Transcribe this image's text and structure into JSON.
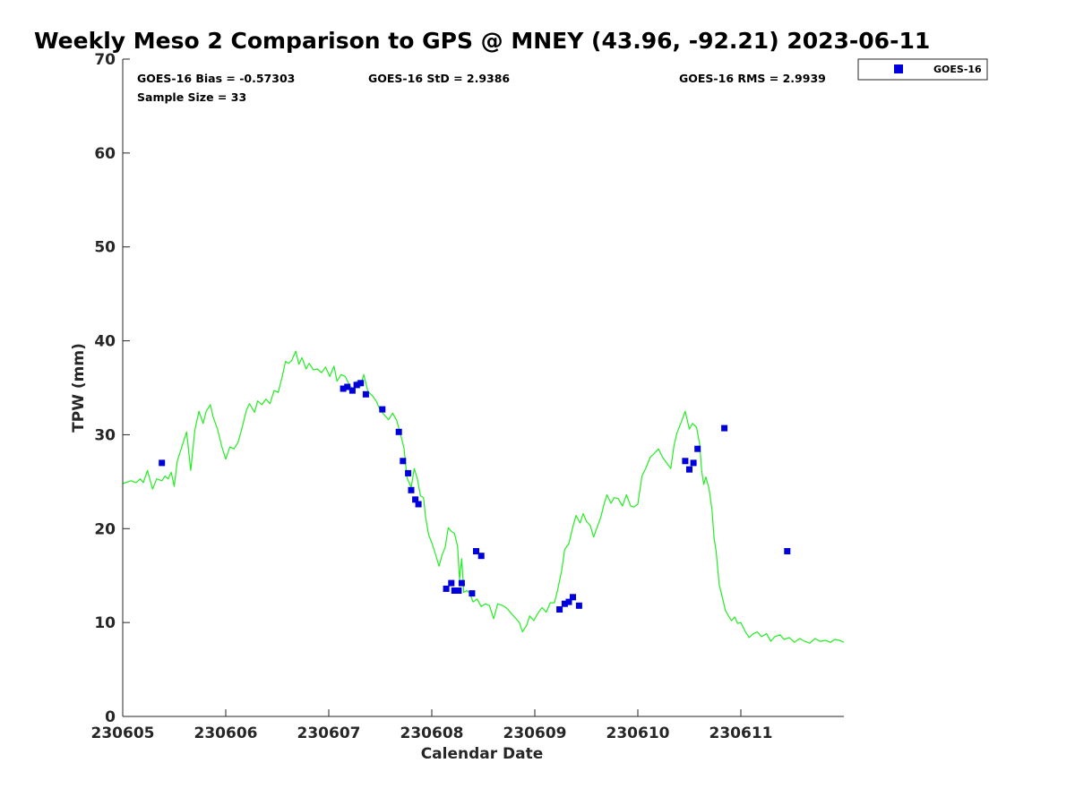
{
  "chart_data": {
    "type": "scatter",
    "title": "Weekly Meso 2 Comparison to GPS @ MNEY (43.96, -92.21) 2023-06-11",
    "xlabel": "Calendar Date",
    "ylabel": "TPW (mm)",
    "xlim": [
      0,
      7
    ],
    "ylim": [
      0,
      70
    ],
    "x_tick_values": [
      0,
      1,
      2,
      3,
      4,
      5,
      6
    ],
    "x_tick_labels": [
      "230605",
      "230606",
      "230607",
      "230608",
      "230609",
      "230610",
      "230611"
    ],
    "y_tick_values": [
      0,
      10,
      20,
      30,
      40,
      50,
      60,
      70
    ],
    "y_tick_labels": [
      "0",
      "10",
      "20",
      "30",
      "40",
      "50",
      "60",
      "70"
    ],
    "grid": false,
    "legend_position": "top-right, outside plot",
    "stats": {
      "bias": "GOES-16 Bias = -0.57303",
      "std": "GOES-16 StD = 2.9386",
      "rms": "GOES-16 RMS = 2.9939",
      "sample": "Sample Size = 33"
    },
    "series": [
      {
        "name": "GOES-16",
        "kind": "scatter",
        "marker": "square",
        "color": "#0000dd",
        "points": [
          [
            0.38,
            27.0
          ],
          [
            2.14,
            34.9
          ],
          [
            2.18,
            35.1
          ],
          [
            2.23,
            34.7
          ],
          [
            2.27,
            35.3
          ],
          [
            2.31,
            35.5
          ],
          [
            2.36,
            34.3
          ],
          [
            2.52,
            32.7
          ],
          [
            2.68,
            30.3
          ],
          [
            2.72,
            27.2
          ],
          [
            2.77,
            25.9
          ],
          [
            2.8,
            24.1
          ],
          [
            2.84,
            23.1
          ],
          [
            2.87,
            22.6
          ],
          [
            3.14,
            13.6
          ],
          [
            3.19,
            14.2
          ],
          [
            3.22,
            13.4
          ],
          [
            3.26,
            13.4
          ],
          [
            3.29,
            14.2
          ],
          [
            3.39,
            13.1
          ],
          [
            3.43,
            17.6
          ],
          [
            3.48,
            17.1
          ],
          [
            4.24,
            11.4
          ],
          [
            4.29,
            12.0
          ],
          [
            4.33,
            12.2
          ],
          [
            4.37,
            12.7
          ],
          [
            4.43,
            11.8
          ],
          [
            5.46,
            27.2
          ],
          [
            5.5,
            26.3
          ],
          [
            5.54,
            27.0
          ],
          [
            5.58,
            28.5
          ],
          [
            5.84,
            30.7
          ],
          [
            6.45,
            17.6
          ]
        ]
      },
      {
        "kind": "line",
        "color": "#22ee22",
        "points": [
          [
            0.0,
            24.8
          ],
          [
            0.08,
            25.1
          ],
          [
            0.13,
            24.9
          ],
          [
            0.17,
            25.3
          ],
          [
            0.2,
            24.9
          ],
          [
            0.24,
            26.2
          ],
          [
            0.29,
            24.2
          ],
          [
            0.33,
            25.3
          ],
          [
            0.38,
            25.1
          ],
          [
            0.41,
            25.6
          ],
          [
            0.44,
            25.3
          ],
          [
            0.47,
            26.0
          ],
          [
            0.5,
            24.5
          ],
          [
            0.53,
            27.2
          ],
          [
            0.57,
            28.6
          ],
          [
            0.62,
            30.3
          ],
          [
            0.66,
            26.2
          ],
          [
            0.7,
            30.5
          ],
          [
            0.74,
            32.5
          ],
          [
            0.78,
            31.2
          ],
          [
            0.81,
            32.5
          ],
          [
            0.85,
            33.2
          ],
          [
            0.88,
            31.8
          ],
          [
            0.92,
            30.6
          ],
          [
            0.96,
            28.8
          ],
          [
            1.0,
            27.4
          ],
          [
            1.04,
            28.7
          ],
          [
            1.08,
            28.5
          ],
          [
            1.12,
            29.2
          ],
          [
            1.16,
            30.8
          ],
          [
            1.2,
            32.6
          ],
          [
            1.23,
            33.3
          ],
          [
            1.28,
            32.4
          ],
          [
            1.31,
            33.6
          ],
          [
            1.35,
            33.2
          ],
          [
            1.39,
            33.8
          ],
          [
            1.43,
            33.3
          ],
          [
            1.47,
            34.7
          ],
          [
            1.51,
            34.5
          ],
          [
            1.55,
            36.3
          ],
          [
            1.58,
            37.8
          ],
          [
            1.61,
            37.6
          ],
          [
            1.64,
            37.9
          ],
          [
            1.68,
            38.9
          ],
          [
            1.71,
            37.5
          ],
          [
            1.74,
            38.2
          ],
          [
            1.78,
            37.0
          ],
          [
            1.81,
            37.6
          ],
          [
            1.85,
            36.9
          ],
          [
            1.89,
            37.0
          ],
          [
            1.93,
            36.6
          ],
          [
            1.97,
            37.2
          ],
          [
            2.01,
            36.2
          ],
          [
            2.05,
            37.3
          ],
          [
            2.08,
            35.7
          ],
          [
            2.12,
            36.4
          ],
          [
            2.16,
            36.2
          ],
          [
            2.2,
            35.3
          ],
          [
            2.24,
            34.8
          ],
          [
            2.27,
            35.7
          ],
          [
            2.3,
            35.0
          ],
          [
            2.34,
            36.4
          ],
          [
            2.38,
            34.6
          ],
          [
            2.42,
            34.2
          ],
          [
            2.46,
            33.6
          ],
          [
            2.5,
            32.6
          ],
          [
            2.54,
            32.1
          ],
          [
            2.58,
            31.6
          ],
          [
            2.62,
            32.3
          ],
          [
            2.66,
            31.5
          ],
          [
            2.7,
            29.9
          ],
          [
            2.73,
            28.6
          ],
          [
            2.76,
            25.4
          ],
          [
            2.8,
            24.4
          ],
          [
            2.83,
            26.4
          ],
          [
            2.86,
            25.3
          ],
          [
            2.89,
            23.5
          ],
          [
            2.92,
            23.3
          ],
          [
            2.94,
            21.2
          ],
          [
            2.97,
            19.3
          ],
          [
            3.0,
            18.5
          ],
          [
            3.03,
            17.5
          ],
          [
            3.07,
            16.0
          ],
          [
            3.1,
            17.2
          ],
          [
            3.13,
            18.0
          ],
          [
            3.16,
            20.1
          ],
          [
            3.19,
            19.7
          ],
          [
            3.22,
            19.5
          ],
          [
            3.25,
            18.1
          ],
          [
            3.27,
            14.6
          ],
          [
            3.29,
            16.8
          ],
          [
            3.31,
            13.2
          ],
          [
            3.34,
            13.4
          ],
          [
            3.37,
            13.1
          ],
          [
            3.4,
            12.2
          ],
          [
            3.44,
            12.5
          ],
          [
            3.48,
            11.7
          ],
          [
            3.52,
            12.0
          ],
          [
            3.56,
            11.8
          ],
          [
            3.6,
            10.4
          ],
          [
            3.64,
            12.0
          ],
          [
            3.69,
            11.8
          ],
          [
            3.73,
            11.5
          ],
          [
            3.77,
            11.0
          ],
          [
            3.81,
            10.5
          ],
          [
            3.85,
            10.0
          ],
          [
            3.88,
            9.0
          ],
          [
            3.92,
            9.7
          ],
          [
            3.95,
            10.7
          ],
          [
            3.99,
            10.2
          ],
          [
            4.03,
            11.0
          ],
          [
            4.07,
            11.6
          ],
          [
            4.11,
            11.1
          ],
          [
            4.15,
            12.1
          ],
          [
            4.19,
            12.1
          ],
          [
            4.22,
            13.4
          ],
          [
            4.26,
            15.5
          ],
          [
            4.29,
            17.8
          ],
          [
            4.33,
            18.4
          ],
          [
            4.37,
            20.2
          ],
          [
            4.4,
            21.4
          ],
          [
            4.44,
            20.6
          ],
          [
            4.47,
            21.6
          ],
          [
            4.5,
            20.8
          ],
          [
            4.54,
            20.3
          ],
          [
            4.57,
            19.1
          ],
          [
            4.6,
            20.0
          ],
          [
            4.64,
            21.2
          ],
          [
            4.67,
            22.5
          ],
          [
            4.7,
            23.6
          ],
          [
            4.74,
            22.7
          ],
          [
            4.77,
            23.3
          ],
          [
            4.81,
            23.2
          ],
          [
            4.85,
            22.4
          ],
          [
            4.89,
            23.6
          ],
          [
            4.93,
            22.4
          ],
          [
            4.96,
            22.3
          ],
          [
            5.0,
            22.6
          ],
          [
            5.04,
            25.6
          ],
          [
            5.08,
            26.5
          ],
          [
            5.12,
            27.6
          ],
          [
            5.16,
            28.0
          ],
          [
            5.2,
            28.5
          ],
          [
            5.24,
            27.6
          ],
          [
            5.28,
            27.0
          ],
          [
            5.32,
            26.4
          ],
          [
            5.35,
            28.8
          ],
          [
            5.38,
            30.2
          ],
          [
            5.42,
            31.3
          ],
          [
            5.46,
            32.5
          ],
          [
            5.5,
            30.6
          ],
          [
            5.53,
            31.2
          ],
          [
            5.57,
            30.8
          ],
          [
            5.6,
            29.0
          ],
          [
            5.62,
            26.1
          ],
          [
            5.64,
            24.7
          ],
          [
            5.66,
            25.5
          ],
          [
            5.69,
            24.3
          ],
          [
            5.72,
            22.0
          ],
          [
            5.74,
            19.0
          ],
          [
            5.76,
            17.6
          ],
          [
            5.79,
            14.0
          ],
          [
            5.82,
            12.7
          ],
          [
            5.85,
            11.3
          ],
          [
            5.88,
            10.7
          ],
          [
            5.91,
            10.2
          ],
          [
            5.94,
            10.6
          ],
          [
            5.97,
            9.9
          ],
          [
            6.0,
            10.0
          ],
          [
            6.04,
            9.1
          ],
          [
            6.08,
            8.4
          ],
          [
            6.12,
            8.8
          ],
          [
            6.16,
            9.0
          ],
          [
            6.2,
            8.5
          ],
          [
            6.25,
            8.8
          ],
          [
            6.29,
            8.0
          ],
          [
            6.33,
            8.5
          ],
          [
            6.38,
            8.7
          ],
          [
            6.42,
            8.2
          ],
          [
            6.47,
            8.4
          ],
          [
            6.52,
            7.9
          ],
          [
            6.57,
            8.3
          ],
          [
            6.62,
            8.0
          ],
          [
            6.67,
            7.8
          ],
          [
            6.72,
            8.3
          ],
          [
            6.77,
            8.0
          ],
          [
            6.82,
            8.1
          ],
          [
            6.87,
            7.9
          ],
          [
            6.91,
            8.2
          ],
          [
            6.96,
            8.1
          ],
          [
            7.0,
            7.9
          ]
        ]
      }
    ]
  }
}
